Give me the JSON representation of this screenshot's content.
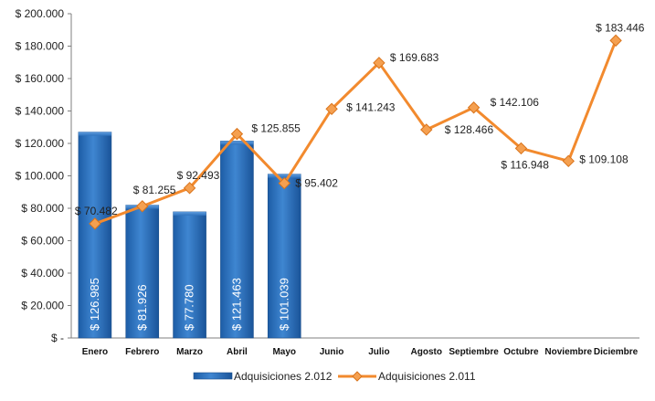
{
  "chart_data": {
    "type": "bar+line",
    "categories": [
      "Enero",
      "Febrero",
      "Marzo",
      "Abril",
      "Mayo",
      "Junio",
      "Julio",
      "Agosto",
      "Septiembre",
      "Octubre",
      "Noviembre",
      "Diciembre"
    ],
    "ylim": [
      0,
      200000
    ],
    "y_ticks": [
      0,
      20000,
      40000,
      60000,
      80000,
      100000,
      120000,
      140000,
      160000,
      180000,
      200000
    ],
    "y_tick_labels": [
      "$ -",
      "$ 20.000",
      "$ 40.000",
      "$ 60.000",
      "$ 80.000",
      "$ 100.000",
      "$ 120.000",
      "$ 140.000",
      "$ 160.000",
      "$ 180.000",
      "$ 200.000"
    ],
    "grid": false,
    "legend_position": "bottom",
    "series": [
      {
        "name": "Adquisiciones 2.012",
        "type": "bar",
        "color": "#2E6FB7",
        "values": [
          126985,
          81926,
          77780,
          121463,
          101039,
          null,
          null,
          null,
          null,
          null,
          null,
          null
        ],
        "labels": [
          "$ 126.985",
          "$ 81.926",
          "$ 77.780",
          "$ 121.463",
          "$ 101.039",
          "",
          "",
          "",
          "",
          "",
          "",
          ""
        ]
      },
      {
        "name": "Adquisiciones 2.011",
        "type": "line",
        "color": "#F28A2E",
        "marker_color": "#F5A050",
        "values": [
          70482,
          81255,
          92493,
          125855,
          95402,
          141243,
          169683,
          128466,
          142106,
          116948,
          109108,
          183446
        ],
        "labels": [
          "$ 70.482",
          "$ 81.255",
          "$ 92.493",
          "$ 125.855",
          "$ 95.402",
          "$ 141.243",
          "$ 169.683",
          "$ 128.466",
          "$ 142.106",
          "$ 116.948",
          "$ 109.108",
          "$ 183.446"
        ]
      }
    ]
  }
}
